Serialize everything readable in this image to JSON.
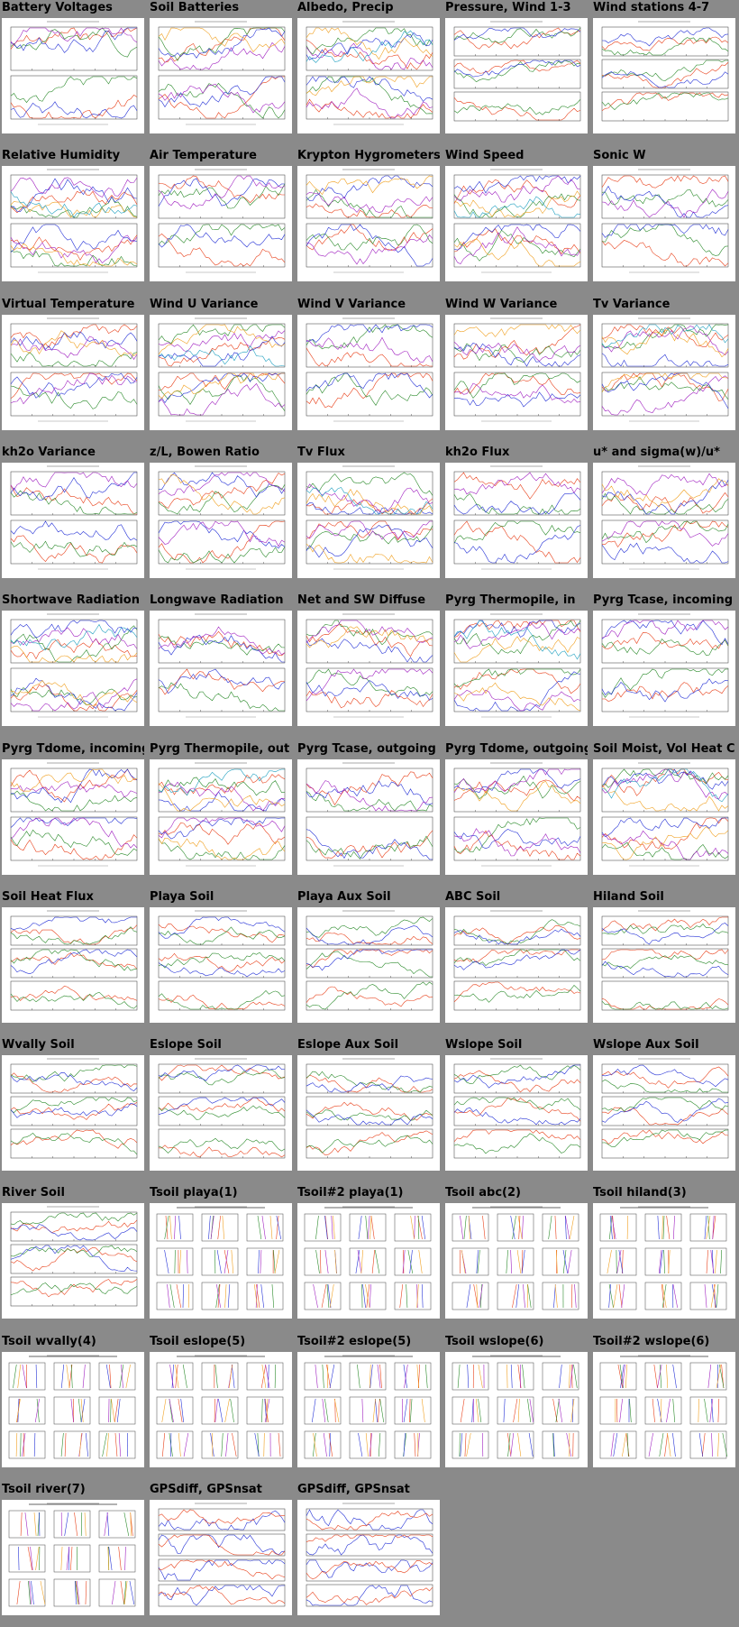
{
  "thumbnails": [
    {
      "title": "Battery Voltages",
      "kind": "plot2"
    },
    {
      "title": "Soil Batteries",
      "kind": "plot2"
    },
    {
      "title": "Albedo, Precip",
      "kind": "plot2"
    },
    {
      "title": "Pressure, Wind 1-3",
      "kind": "plot3"
    },
    {
      "title": "Wind stations 4-7",
      "kind": "plot3"
    },
    {
      "title": "Relative Humidity",
      "kind": "plot2"
    },
    {
      "title": "Air Temperature",
      "kind": "plot2"
    },
    {
      "title": "Krypton Hygrometers",
      "kind": "plot2"
    },
    {
      "title": "Wind Speed",
      "kind": "plot2"
    },
    {
      "title": "Sonic W",
      "kind": "plot2"
    },
    {
      "title": "Virtual Temperature",
      "kind": "plot2"
    },
    {
      "title": "Wind U Variance",
      "kind": "plot2"
    },
    {
      "title": "Wind V Variance",
      "kind": "plot2"
    },
    {
      "title": "Wind W Variance",
      "kind": "plot2"
    },
    {
      "title": "Tv Variance",
      "kind": "plot2"
    },
    {
      "title": "kh2o Variance",
      "kind": "plot2"
    },
    {
      "title": "z/L, Bowen Ratio",
      "kind": "plot2"
    },
    {
      "title": "Tv Flux",
      "kind": "plot2"
    },
    {
      "title": "kh2o Flux",
      "kind": "plot2"
    },
    {
      "title": "u* and sigma(w)/u*",
      "kind": "plot2"
    },
    {
      "title": "Shortwave Radiation",
      "kind": "plot2"
    },
    {
      "title": "Longwave Radiation",
      "kind": "plot2"
    },
    {
      "title": "Net and SW Diffuse",
      "kind": "plot2"
    },
    {
      "title": "Pyrg Thermopile, in",
      "kind": "plot2"
    },
    {
      "title": "Pyrg Tcase, incoming",
      "kind": "plot2"
    },
    {
      "title": "Pyrg Tdome, incoming",
      "kind": "plot2"
    },
    {
      "title": "Pyrg Thermopile, out",
      "kind": "plot2"
    },
    {
      "title": "Pyrg Tcase, outgoing",
      "kind": "plot2"
    },
    {
      "title": "Pyrg Tdome, outgoing",
      "kind": "plot2"
    },
    {
      "title": "Soil Moist, Vol Heat Cap",
      "kind": "plot2"
    },
    {
      "title": "Soil Heat Flux",
      "kind": "plot3"
    },
    {
      "title": "Playa Soil",
      "kind": "plot3"
    },
    {
      "title": "Playa Aux Soil",
      "kind": "plot3"
    },
    {
      "title": "ABC Soil",
      "kind": "plot3"
    },
    {
      "title": "Hiland Soil",
      "kind": "plot3"
    },
    {
      "title": "Wvally Soil",
      "kind": "plot3"
    },
    {
      "title": "Eslope Soil",
      "kind": "plot3"
    },
    {
      "title": "Eslope Aux Soil",
      "kind": "plot3"
    },
    {
      "title": "Wslope Soil",
      "kind": "plot3"
    },
    {
      "title": "Wslope Aux Soil",
      "kind": "plot3"
    },
    {
      "title": "River Soil",
      "kind": "plot3"
    },
    {
      "title": "Tsoil playa(1)",
      "kind": "profile"
    },
    {
      "title": "Tsoil#2 playa(1)",
      "kind": "profile"
    },
    {
      "title": "Tsoil abc(2)",
      "kind": "profile"
    },
    {
      "title": "Tsoil hiland(3)",
      "kind": "profile"
    },
    {
      "title": "Tsoil wvally(4)",
      "kind": "profile"
    },
    {
      "title": "Tsoil eslope(5)",
      "kind": "profile"
    },
    {
      "title": "Tsoil#2 eslope(5)",
      "kind": "profile"
    },
    {
      "title": "Tsoil wslope(6)",
      "kind": "profile"
    },
    {
      "title": "Tsoil#2 wslope(6)",
      "kind": "profile"
    },
    {
      "title": "Tsoil river(7)",
      "kind": "profile"
    },
    {
      "title": "GPSdiff, GPSnsat",
      "kind": "gps"
    },
    {
      "title": "GPSdiff, GPSnsat",
      "kind": "gps"
    }
  ],
  "colors": {
    "page_background": "#8a8a8a",
    "thumb_background": "#ffffff",
    "series": [
      "#e8401a",
      "#2a8a2a",
      "#2431d6",
      "#a020c0",
      "#f0a020",
      "#20a0c0",
      "#909090",
      "#d02090"
    ]
  }
}
